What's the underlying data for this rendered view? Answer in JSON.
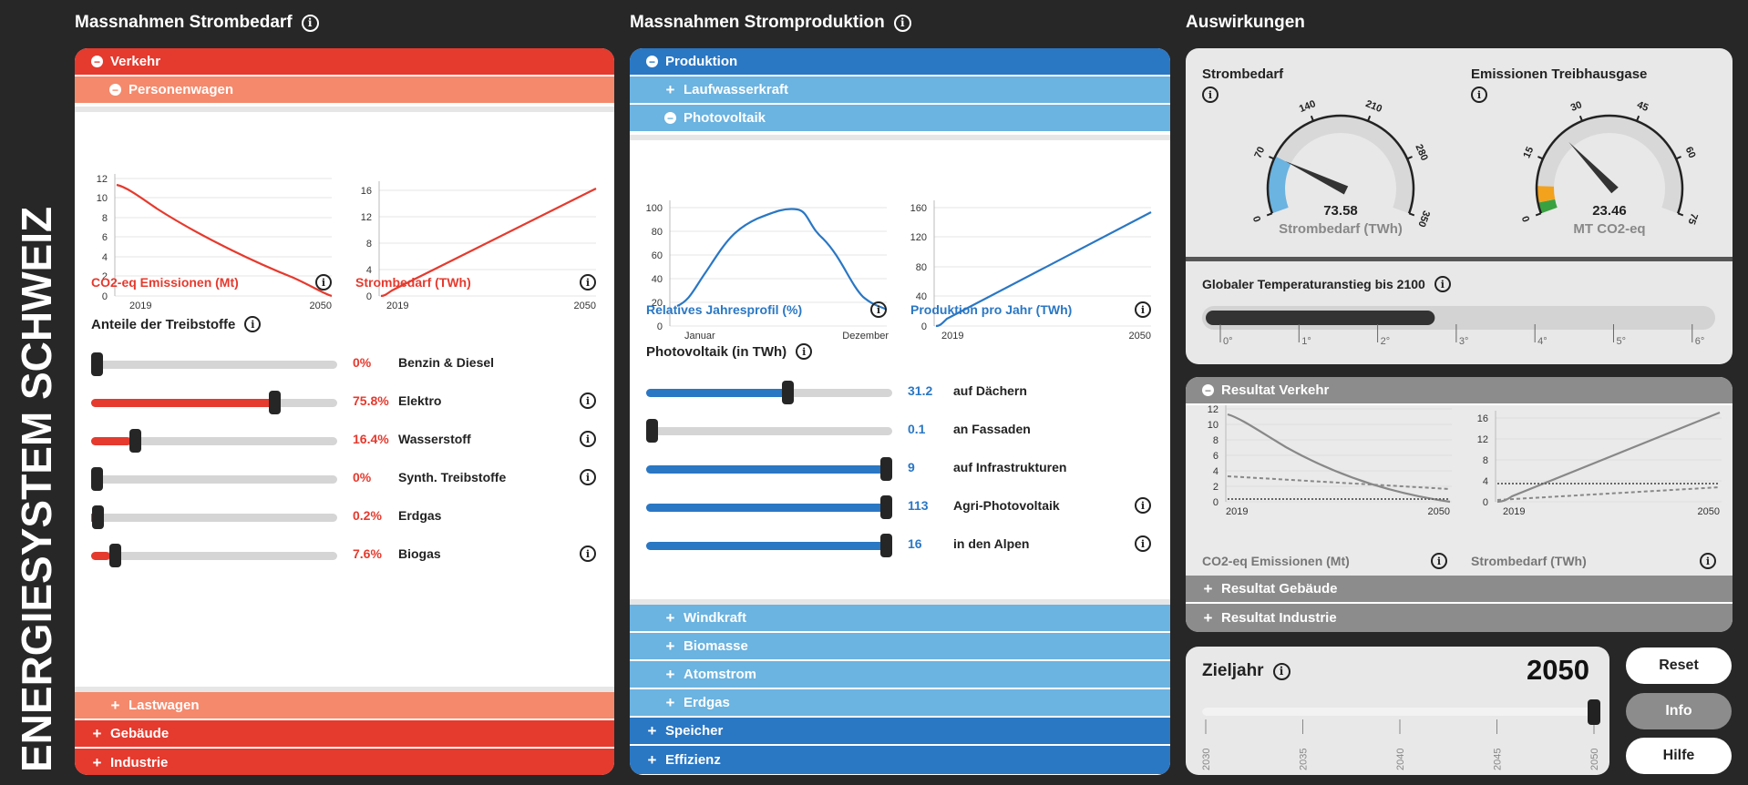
{
  "app_title": "ENERGIESYSTEM SCHWEIZ",
  "col1": {
    "title": "Massnahmen Strombedarf",
    "verkehr": "Verkehr",
    "personenwagen": "Personenwagen",
    "chart1": {
      "label": "CO2-eq Emissionen (Mt)",
      "yticks": [
        "12",
        "10",
        "8",
        "6",
        "4",
        "2",
        "0"
      ],
      "x0": "2019",
      "x1": "2050"
    },
    "chart2": {
      "label": "Strombedarf (TWh)",
      "yticks": [
        "16",
        "12",
        "8",
        "4",
        "0"
      ],
      "x0": "2019",
      "x1": "2050"
    },
    "fuels_title": "Anteile der Treibstoffe",
    "fuels": [
      {
        "value": "0%",
        "label": "Benzin & Diesel",
        "frac": 0.0
      },
      {
        "value": "75.8%",
        "label": "Elektro",
        "frac": 0.758
      },
      {
        "value": "16.4%",
        "label": "Wasserstoff",
        "frac": 0.164
      },
      {
        "value": "0%",
        "label": "Synth. Treibstoffe",
        "frac": 0.0
      },
      {
        "value": "0.2%",
        "label": "Erdgas",
        "frac": 0.002
      },
      {
        "value": "7.6%",
        "label": "Biogas",
        "frac": 0.076
      }
    ],
    "lastwagen": "Lastwagen",
    "gebaeude": "Gebäude",
    "industrie": "Industrie"
  },
  "col2": {
    "title": "Massnahmen Stromproduktion",
    "produktion": "Produktion",
    "laufwasser": "Laufwasserkraft",
    "photovoltaik": "Photovoltaik",
    "chart1": {
      "label": "Relatives Jahresprofil (%)",
      "yticks": [
        "100",
        "80",
        "60",
        "40",
        "20",
        "0"
      ],
      "x0": "Januar",
      "x1": "Dezember"
    },
    "chart2": {
      "label": "Produktion pro Jahr (TWh)",
      "yticks": [
        "160",
        "120",
        "80",
        "40",
        "0"
      ],
      "x0": "2019",
      "x1": "2050"
    },
    "pv_title": "Photovoltaik (in TWh)",
    "pv": [
      {
        "value": "31.2",
        "label": "auf Dächern",
        "frac": 0.58
      },
      {
        "value": "0.1",
        "label": "an Fassaden",
        "frac": 0.0
      },
      {
        "value": "9",
        "label": "auf Infrastrukturen",
        "frac": 1.0
      },
      {
        "value": "113",
        "label": "Agri-Photovoltaik",
        "frac": 1.0
      },
      {
        "value": "16",
        "label": "in den Alpen",
        "frac": 1.0
      }
    ],
    "windkraft": "Windkraft",
    "biomasse": "Biomasse",
    "atomstrom": "Atomstrom",
    "erdgas": "Erdgas",
    "speicher": "Speicher",
    "effizienz": "Effizienz"
  },
  "col3": {
    "title": "Auswirkungen",
    "gauge1": {
      "title": "Strombedarf",
      "value": "73.58",
      "unit": "Strombedarf (TWh)",
      "ticks": [
        "0",
        "70",
        "140",
        "210",
        "280",
        "350"
      ],
      "level": 73.58,
      "max": 350
    },
    "gauge2": {
      "title": "Emissionen Treibhausgase",
      "value": "23.46",
      "unit": "MT CO2-eq",
      "ticks": [
        "0",
        "15",
        "30",
        "45",
        "60",
        "75"
      ],
      "level": 23.46,
      "max": 75
    },
    "temp": {
      "title": "Globaler Temperaturanstieg bis 2100",
      "ticks": [
        "0°",
        "1°",
        "2°",
        "3°",
        "4°",
        "5°",
        "6°"
      ],
      "level": 2.7
    },
    "resultat_verkehr": "Resultat Verkehr",
    "rchart1": {
      "label": "CO2-eq Emissionen (Mt)",
      "yticks": [
        "12",
        "10",
        "8",
        "6",
        "4",
        "2",
        "0"
      ],
      "x0": "2019",
      "x1": "2050"
    },
    "rchart2": {
      "label": "Strombedarf (TWh)",
      "yticks": [
        "16",
        "12",
        "8",
        "4",
        "0"
      ],
      "x0": "2019",
      "x1": "2050"
    },
    "resultat_gebaeude": "Resultat Gebäude",
    "resultat_industrie": "Resultat Industrie",
    "zieljahr": {
      "label": "Zieljahr",
      "value": "2050",
      "ticks": [
        "2030",
        "2035",
        "2040",
        "2045",
        "2050"
      ]
    },
    "buttons": {
      "reset": "Reset",
      "info": "Info",
      "hilfe": "Hilfe"
    }
  },
  "colors": {
    "red": "#e53a2e",
    "salmon": "#f4896c",
    "blue": "#2a77c4",
    "lightblue": "#6bb3e0",
    "grey": "#8c8c8c"
  }
}
